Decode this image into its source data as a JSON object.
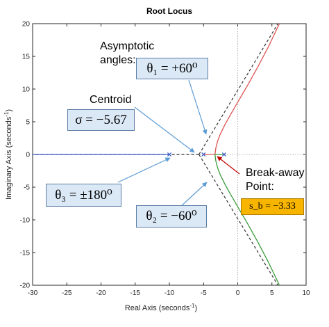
{
  "chart_data": {
    "type": "line",
    "title": "Root Locus",
    "xlabel": "Real Axis (seconds",
    "ylabel": "Imaginary Axis (seconds",
    "label_exponent": "-1",
    "label_close": ")",
    "xlim": [
      -30,
      10
    ],
    "ylim": [
      -20,
      20
    ],
    "xticks": [
      -30,
      -25,
      -20,
      -15,
      -10,
      -5,
      0,
      5,
      10
    ],
    "yticks": [
      -20,
      -15,
      -10,
      -5,
      0,
      5,
      10,
      15,
      20
    ],
    "grid": false,
    "poles": [
      [
        -10,
        0
      ],
      [
        -5,
        0
      ],
      [
        -2,
        0
      ]
    ],
    "centroid": [
      -5.67,
      0
    ],
    "breakaway": [
      -3.33,
      0
    ],
    "series": [
      {
        "color": "#3b5cc4",
        "points": [
          [
            -10,
            0
          ],
          [
            -30,
            0
          ]
        ]
      },
      {
        "color": "#d9534f",
        "points": [
          [
            -5,
            0
          ],
          [
            -3.33,
            0
          ],
          [
            -3.2,
            1
          ],
          [
            -2.95,
            2
          ],
          [
            -2.6,
            3
          ],
          [
            -1.9,
            4.5
          ],
          [
            -1.1,
            6
          ],
          [
            0,
            8
          ],
          [
            1.4,
            10.5
          ],
          [
            3,
            13.5
          ],
          [
            4.5,
            16.5
          ],
          [
            6.1,
            20
          ]
        ]
      },
      {
        "color": "#3a9a3a",
        "points": [
          [
            -2,
            0
          ],
          [
            -3.33,
            0
          ],
          [
            -3.2,
            -1
          ],
          [
            -2.95,
            -2
          ],
          [
            -2.6,
            -3
          ],
          [
            -1.9,
            -4.5
          ],
          [
            -1.1,
            -6
          ],
          [
            0,
            -8
          ],
          [
            1.4,
            -10.5
          ],
          [
            3,
            -13.5
          ],
          [
            4.5,
            -16.5
          ],
          [
            6.1,
            -20
          ]
        ]
      }
    ],
    "asymptotes": [
      {
        "from": [
          -5.67,
          0
        ],
        "to": [
          5.88,
          20
        ]
      },
      {
        "from": [
          -5.67,
          0
        ],
        "to": [
          5.88,
          -20
        ]
      }
    ],
    "annotations": {
      "asymptotic_label_line1": "Asymptotic",
      "asymptotic_label_line2": "angles:",
      "theta1": "θ₁ = +60⁰",
      "centroid_label": "Centroid",
      "sigma": "σ = −5.67",
      "theta3": "θ₃ = ±180⁰",
      "theta2": "θ₂ = −60⁰",
      "breakaway_line1": "Break-away",
      "breakaway_line2": "Point:",
      "sb": "s_b = −3.33"
    }
  },
  "colors": {
    "axis": "#262626",
    "asymptote": "#333333",
    "arrow_blue": "#5b9bd5",
    "arrow_red": "#c00000",
    "pole_marker": "#3b5cc4",
    "box_blue": "#dbe8f6",
    "box_yellow": "#f7b500"
  }
}
